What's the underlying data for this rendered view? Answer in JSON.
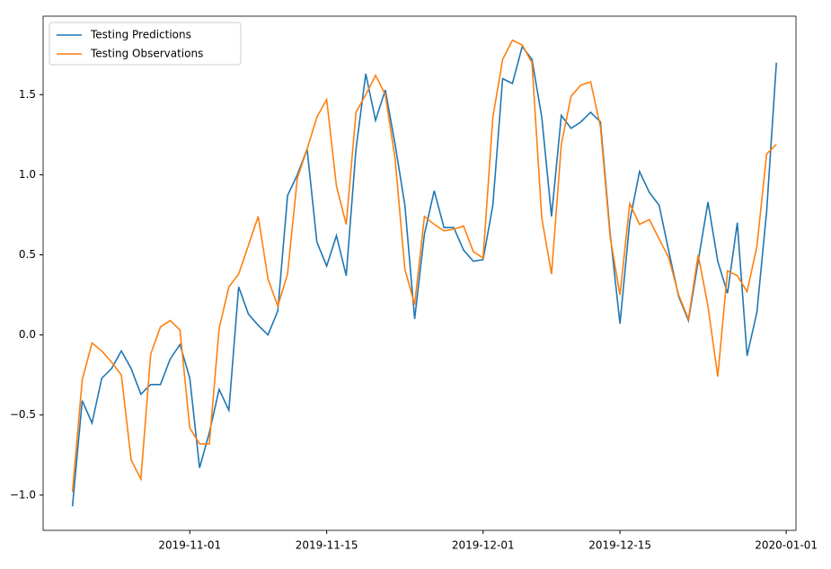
{
  "chart_data": {
    "type": "line",
    "x": [
      "2019-10-20",
      "2019-10-21",
      "2019-10-22",
      "2019-10-23",
      "2019-10-24",
      "2019-10-25",
      "2019-10-26",
      "2019-10-27",
      "2019-10-28",
      "2019-10-29",
      "2019-10-30",
      "2019-10-31",
      "2019-11-01",
      "2019-11-02",
      "2019-11-03",
      "2019-11-04",
      "2019-11-05",
      "2019-11-06",
      "2019-11-07",
      "2019-11-08",
      "2019-11-09",
      "2019-11-10",
      "2019-11-11",
      "2019-11-12",
      "2019-11-13",
      "2019-11-14",
      "2019-11-15",
      "2019-11-16",
      "2019-11-17",
      "2019-11-18",
      "2019-11-19",
      "2019-11-20",
      "2019-11-21",
      "2019-11-22",
      "2019-11-23",
      "2019-11-24",
      "2019-11-25",
      "2019-11-26",
      "2019-11-27",
      "2019-11-28",
      "2019-11-29",
      "2019-11-30",
      "2019-12-01",
      "2019-12-02",
      "2019-12-03",
      "2019-12-04",
      "2019-12-05",
      "2019-12-06",
      "2019-12-07",
      "2019-12-08",
      "2019-12-09",
      "2019-12-10",
      "2019-12-11",
      "2019-12-12",
      "2019-12-13",
      "2019-12-14",
      "2019-12-15",
      "2019-12-16",
      "2019-12-17",
      "2019-12-18",
      "2019-12-19",
      "2019-12-20",
      "2019-12-21",
      "2019-12-22",
      "2019-12-23",
      "2019-12-24",
      "2019-12-25",
      "2019-12-26",
      "2019-12-27",
      "2019-12-28",
      "2019-12-29",
      "2019-12-30",
      "2019-12-31"
    ],
    "series": [
      {
        "name": "Testing Predictions",
        "color": "#1f77b4",
        "values": [
          -1.07,
          -0.41,
          -0.55,
          -0.27,
          -0.21,
          -0.1,
          -0.21,
          -0.37,
          -0.31,
          -0.31,
          -0.15,
          -0.06,
          -0.27,
          -0.83,
          -0.61,
          -0.34,
          -0.47,
          0.3,
          0.13,
          0.06,
          0.0,
          0.15,
          0.87,
          1.0,
          1.16,
          0.58,
          0.43,
          0.62,
          0.37,
          1.16,
          1.63,
          1.34,
          1.53,
          1.19,
          0.81,
          0.1,
          0.63,
          0.9,
          0.67,
          0.67,
          0.53,
          0.46,
          0.47,
          0.81,
          1.6,
          1.57,
          1.8,
          1.72,
          1.36,
          0.74,
          1.37,
          1.29,
          1.33,
          1.39,
          1.33,
          0.63,
          0.07,
          0.71,
          1.02,
          0.89,
          0.81,
          0.52,
          0.24,
          0.09,
          0.46,
          0.83,
          0.46,
          0.26,
          0.7,
          -0.13,
          0.14,
          0.77,
          1.7
        ]
      },
      {
        "name": "Testing Observations",
        "color": "#ff7f0e",
        "values": [
          -0.98,
          -0.28,
          -0.05,
          -0.1,
          -0.17,
          -0.25,
          -0.78,
          -0.9,
          -0.12,
          0.05,
          0.09,
          0.03,
          -0.58,
          -0.68,
          -0.68,
          0.04,
          0.3,
          0.38,
          0.56,
          0.74,
          0.35,
          0.18,
          0.38,
          0.98,
          1.16,
          1.36,
          1.47,
          0.93,
          0.69,
          1.39,
          1.5,
          1.62,
          1.5,
          1.1,
          0.41,
          0.19,
          0.74,
          0.69,
          0.65,
          0.66,
          0.68,
          0.52,
          0.48,
          1.36,
          1.72,
          1.84,
          1.81,
          1.7,
          0.73,
          0.38,
          1.19,
          1.49,
          1.56,
          1.58,
          1.3,
          0.61,
          0.25,
          0.82,
          0.69,
          0.72,
          0.6,
          0.48,
          0.25,
          0.1,
          0.5,
          0.18,
          -0.26,
          0.4,
          0.37,
          0.27,
          0.55,
          1.13,
          1.19
        ]
      }
    ],
    "xlim": [
      "2019-10-17",
      "2020-01-02"
    ],
    "xticks": [
      "2019-11-01",
      "2019-11-15",
      "2019-12-01",
      "2019-12-15",
      "2020-01-01"
    ],
    "ylim": [
      -1.22,
      1.99
    ],
    "yticks": [
      {
        "value": -1,
        "label": "−1.0"
      },
      {
        "value": -0.5,
        "label": "−0.5"
      },
      {
        "value": 0,
        "label": "0.0"
      },
      0.5,
      {
        "value": 1,
        "label": "1.0"
      },
      {
        "value": 1.5,
        "label": "1.5"
      }
    ],
    "legend": "upper left"
  }
}
